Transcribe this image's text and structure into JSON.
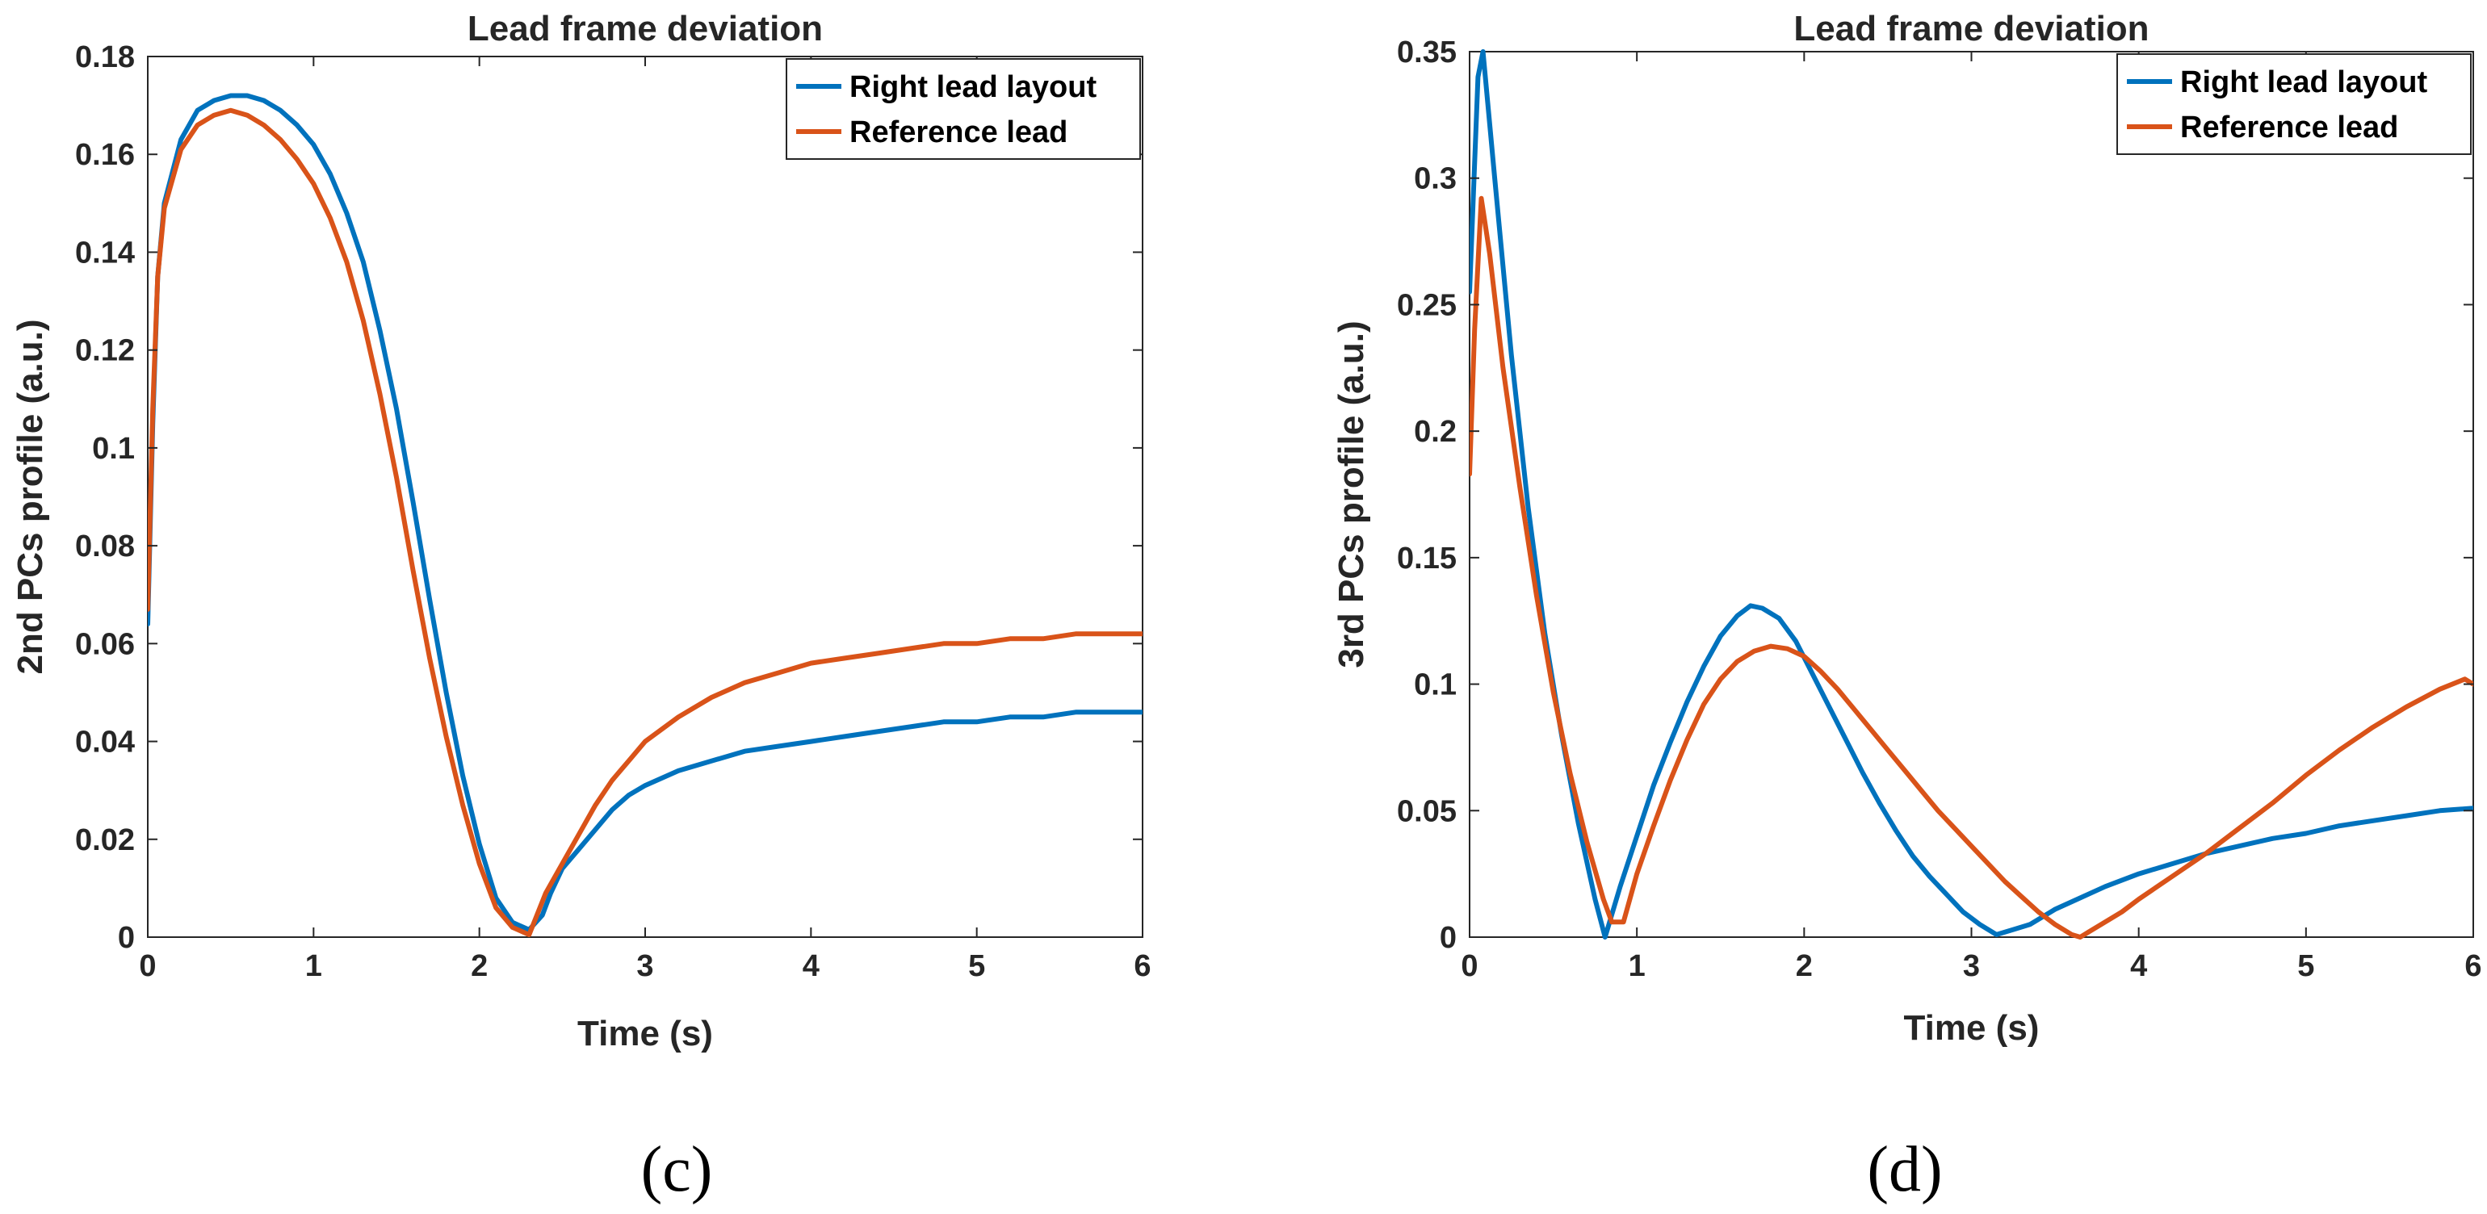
{
  "colors": {
    "series1": "#0072BD",
    "series2": "#D95319",
    "axis": "#262626",
    "background": "#ffffff"
  },
  "chart_data": [
    {
      "type": "line",
      "panel_label": "(c)",
      "title": "Lead frame deviation",
      "xlabel": "Time (s)",
      "ylabel": "2nd PCs profile (a.u.)",
      "xlim": [
        0,
        6
      ],
      "ylim": [
        0,
        0.18
      ],
      "xticks": [
        0,
        1,
        2,
        3,
        4,
        5,
        6
      ],
      "xtick_labels": [
        "0",
        "1",
        "2",
        "3",
        "4",
        "5",
        "6"
      ],
      "yticks": [
        0,
        0.02,
        0.04,
        0.06,
        0.08,
        0.1,
        0.12,
        0.14,
        0.16,
        0.18
      ],
      "ytick_labels": [
        "0",
        "0.02",
        "0.04",
        "0.06",
        "0.08",
        "0.1",
        "0.12",
        "0.14",
        "0.16",
        "0.18"
      ],
      "grid": false,
      "legend": "top-right",
      "series": [
        {
          "name": "Right lead layout",
          "color": "#0072BD",
          "x": [
            0,
            0.03,
            0.06,
            0.1,
            0.2,
            0.3,
            0.4,
            0.5,
            0.6,
            0.7,
            0.8,
            0.9,
            1.0,
            1.1,
            1.2,
            1.3,
            1.4,
            1.5,
            1.6,
            1.7,
            1.8,
            1.9,
            2.0,
            2.1,
            2.2,
            2.3,
            2.38,
            2.43,
            2.5,
            2.6,
            2.7,
            2.8,
            2.9,
            3.0,
            3.2,
            3.4,
            3.6,
            3.8,
            4.0,
            4.2,
            4.4,
            4.6,
            4.8,
            5.0,
            5.2,
            5.4,
            5.6,
            5.8,
            6.0
          ],
          "y": [
            0.064,
            0.105,
            0.135,
            0.15,
            0.163,
            0.169,
            0.171,
            0.172,
            0.172,
            0.171,
            0.169,
            0.166,
            0.162,
            0.156,
            0.148,
            0.138,
            0.124,
            0.108,
            0.089,
            0.069,
            0.05,
            0.033,
            0.019,
            0.008,
            0.003,
            0.0015,
            0.0045,
            0.009,
            0.014,
            0.018,
            0.022,
            0.026,
            0.029,
            0.031,
            0.034,
            0.036,
            0.038,
            0.039,
            0.04,
            0.041,
            0.042,
            0.043,
            0.044,
            0.044,
            0.045,
            0.045,
            0.046,
            0.046,
            0.046
          ]
        },
        {
          "name": "Reference lead",
          "color": "#D95319",
          "x": [
            0,
            0.03,
            0.06,
            0.1,
            0.2,
            0.3,
            0.4,
            0.5,
            0.6,
            0.7,
            0.8,
            0.9,
            1.0,
            1.1,
            1.2,
            1.3,
            1.4,
            1.5,
            1.6,
            1.7,
            1.8,
            1.9,
            2.0,
            2.1,
            2.2,
            2.3,
            2.4,
            2.5,
            2.6,
            2.7,
            2.8,
            2.9,
            3.0,
            3.2,
            3.4,
            3.6,
            3.8,
            4.0,
            4.2,
            4.4,
            4.6,
            4.8,
            5.0,
            5.2,
            5.4,
            5.6,
            5.8,
            6.0
          ],
          "y": [
            0.067,
            0.108,
            0.135,
            0.149,
            0.161,
            0.166,
            0.168,
            0.169,
            0.168,
            0.166,
            0.163,
            0.159,
            0.154,
            0.147,
            0.138,
            0.126,
            0.111,
            0.094,
            0.075,
            0.057,
            0.041,
            0.027,
            0.015,
            0.006,
            0.002,
            0.0005,
            0.009,
            0.015,
            0.021,
            0.027,
            0.032,
            0.036,
            0.04,
            0.045,
            0.049,
            0.052,
            0.054,
            0.056,
            0.057,
            0.058,
            0.059,
            0.06,
            0.06,
            0.061,
            0.061,
            0.062,
            0.062,
            0.062
          ]
        }
      ]
    },
    {
      "type": "line",
      "panel_label": "(d)",
      "title": "Lead frame deviation",
      "xlabel": "Time (s)",
      "ylabel": "3rd PCs profile (a.u.)",
      "xlim": [
        0,
        6
      ],
      "ylim": [
        0,
        0.35
      ],
      "xticks": [
        0,
        1,
        2,
        3,
        4,
        5,
        6
      ],
      "xtick_labels": [
        "0",
        "1",
        "2",
        "3",
        "4",
        "5",
        "6"
      ],
      "yticks": [
        0,
        0.05,
        0.1,
        0.15,
        0.2,
        0.25,
        0.3,
        0.35
      ],
      "ytick_labels": [
        "0",
        "0.05",
        "0.1",
        "0.15",
        "0.2",
        "0.25",
        "0.3",
        "0.35"
      ],
      "grid": false,
      "legend": "top-right",
      "series": [
        {
          "name": "Right lead layout",
          "color": "#0072BD",
          "x": [
            0,
            0.05,
            0.08,
            0.15,
            0.25,
            0.35,
            0.45,
            0.55,
            0.65,
            0.75,
            0.81,
            0.9,
            1.0,
            1.1,
            1.2,
            1.3,
            1.4,
            1.5,
            1.6,
            1.68,
            1.75,
            1.85,
            1.95,
            2.05,
            2.15,
            2.25,
            2.35,
            2.45,
            2.55,
            2.65,
            2.75,
            2.85,
            2.95,
            3.05,
            3.15,
            3.25,
            3.35,
            3.5,
            3.6,
            3.8,
            4.0,
            4.2,
            4.4,
            4.6,
            4.8,
            5.0,
            5.2,
            5.4,
            5.6,
            5.8,
            6.0
          ],
          "y": [
            0.255,
            0.34,
            0.35,
            0.3,
            0.23,
            0.17,
            0.12,
            0.08,
            0.045,
            0.015,
            0.0,
            0.02,
            0.04,
            0.06,
            0.077,
            0.093,
            0.107,
            0.119,
            0.127,
            0.131,
            0.13,
            0.126,
            0.117,
            0.104,
            0.091,
            0.078,
            0.065,
            0.053,
            0.042,
            0.032,
            0.024,
            0.017,
            0.01,
            0.005,
            0.001,
            0.003,
            0.005,
            0.011,
            0.014,
            0.02,
            0.025,
            0.029,
            0.033,
            0.036,
            0.039,
            0.041,
            0.044,
            0.046,
            0.048,
            0.05,
            0.051
          ]
        },
        {
          "name": "Reference lead",
          "color": "#D95319",
          "x": [
            0,
            0.03,
            0.07,
            0.12,
            0.2,
            0.3,
            0.4,
            0.5,
            0.6,
            0.7,
            0.8,
            0.85,
            0.92,
            1.0,
            1.1,
            1.2,
            1.3,
            1.4,
            1.5,
            1.6,
            1.7,
            1.8,
            1.9,
            2.0,
            2.1,
            2.2,
            2.3,
            2.4,
            2.5,
            2.6,
            2.7,
            2.8,
            2.9,
            3.0,
            3.1,
            3.2,
            3.3,
            3.4,
            3.5,
            3.6,
            3.65,
            3.7,
            3.8,
            3.9,
            4.0,
            4.2,
            4.4,
            4.6,
            4.8,
            5.0,
            5.2,
            5.4,
            5.6,
            5.8,
            5.95,
            6.0
          ],
          "y": [
            0.183,
            0.24,
            0.292,
            0.27,
            0.225,
            0.178,
            0.135,
            0.097,
            0.065,
            0.038,
            0.015,
            0.006,
            0.006,
            0.025,
            0.044,
            0.062,
            0.078,
            0.092,
            0.102,
            0.109,
            0.113,
            0.115,
            0.114,
            0.111,
            0.105,
            0.098,
            0.09,
            0.082,
            0.074,
            0.066,
            0.058,
            0.05,
            0.043,
            0.036,
            0.029,
            0.022,
            0.016,
            0.01,
            0.005,
            0.001,
            0.0,
            0.002,
            0.006,
            0.01,
            0.015,
            0.024,
            0.033,
            0.043,
            0.053,
            0.064,
            0.074,
            0.083,
            0.091,
            0.098,
            0.102,
            0.1
          ]
        }
      ]
    }
  ]
}
